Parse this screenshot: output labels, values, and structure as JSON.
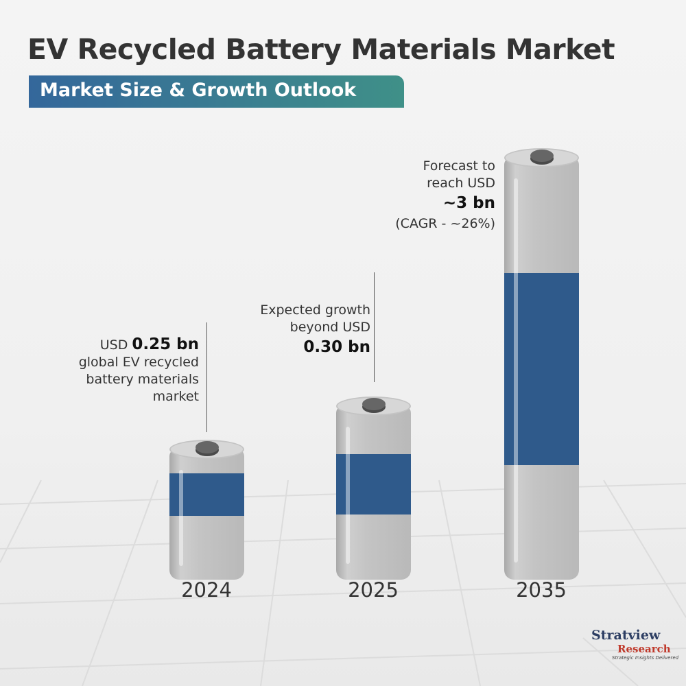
{
  "title": "EV Recycled Battery Materials Market",
  "subtitle": "Market Size & Growth Outlook",
  "chart_data": {
    "type": "bar",
    "title": "EV Recycled Battery Materials Market",
    "subtitle": "Market Size & Growth Outlook",
    "categories": [
      "2024",
      "2025",
      "2035"
    ],
    "values": [
      0.25,
      0.3,
      3
    ],
    "unit": "USD bn",
    "annotations": [
      {
        "prefix": "USD",
        "value": "0.25 bn",
        "lines": [
          "global EV recycled",
          "battery materials",
          "market"
        ]
      },
      {
        "lines": [
          "Expected growth",
          "beyond USD"
        ],
        "value": "0.30 bn"
      },
      {
        "lines": [
          "Forecast to",
          "reach USD"
        ],
        "value": "~3 bn",
        "note": "(CAGR - ~26%)"
      }
    ]
  },
  "logo": {
    "name": "Stratview",
    "sub": "Research",
    "tagline": "Strategic Insights Delivered"
  },
  "colors": {
    "band": "#2f5a8b",
    "battery": "#c4c4c4",
    "accent_start": "#34679b",
    "accent_end": "#3f9088"
  }
}
